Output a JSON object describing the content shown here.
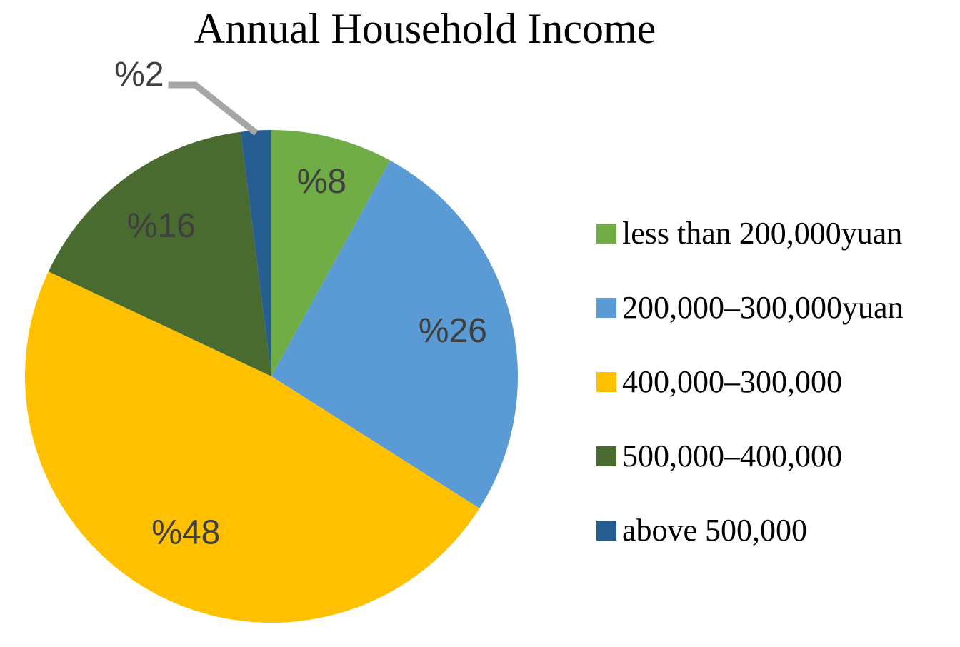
{
  "chart_data": {
    "type": "pie",
    "title": "Annual Household Income",
    "direction": "clockwise",
    "start_angle_deg": 0,
    "legend_position": "right",
    "label_text_color": "#3F3F3F",
    "leader_line_color": "#A6A6A6",
    "slices": [
      {
        "label": "less than 200,000yuan",
        "value": 8,
        "display": "%8",
        "color": "#70AD47"
      },
      {
        "label": "200,000–300,000yuan",
        "value": 26,
        "display": "%26",
        "color": "#5B9BD5"
      },
      {
        "label": "400,000–300,000",
        "value": 48,
        "display": "%48",
        "color": "#FFC000"
      },
      {
        "label": "500,000–400,000",
        "value": 16,
        "display": "%16",
        "color": "#496B2F"
      },
      {
        "label": "above 500,000",
        "value": 2,
        "display": "%2",
        "color": "#265E91"
      }
    ]
  }
}
